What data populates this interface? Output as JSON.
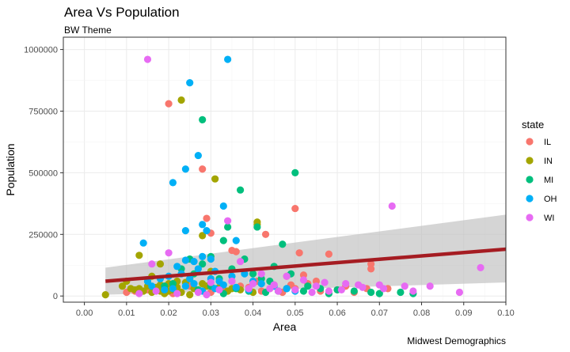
{
  "chart_data": {
    "type": "scatter",
    "title": "Area Vs Population",
    "subtitle": "BW Theme",
    "caption": "Midwest Demographics",
    "xlabel": "Area",
    "ylabel": "Population",
    "xlim": [
      -0.005,
      0.1
    ],
    "ylim": [
      -25000,
      1050000
    ],
    "x_ticks": [
      0.0,
      0.01,
      0.02,
      0.03,
      0.04,
      0.05,
      0.06,
      0.07,
      0.08,
      0.09,
      0.1
    ],
    "x_tick_labels": [
      "0.00",
      "0.01",
      "0.02",
      "0.03",
      "0.04",
      "0.05",
      "0.06",
      "0.07",
      "0.08",
      "0.09",
      "0.10"
    ],
    "y_ticks": [
      0,
      250000,
      500000,
      750000,
      1000000
    ],
    "y_tick_labels": [
      "0",
      "250000",
      "500000",
      "750000",
      "1000000"
    ],
    "grid": true,
    "legend": {
      "title": "state",
      "position": "right"
    },
    "series": [
      {
        "name": "IL",
        "color": "#F8766D",
        "points": [
          [
            0.02,
            780000
          ],
          [
            0.028,
            515000
          ],
          [
            0.05,
            355000
          ],
          [
            0.029,
            315000
          ],
          [
            0.043,
            250000
          ],
          [
            0.03,
            255000
          ],
          [
            0.036,
            180000
          ],
          [
            0.035,
            185000
          ],
          [
            0.051,
            175000
          ],
          [
            0.058,
            170000
          ],
          [
            0.068,
            130000
          ],
          [
            0.068,
            110000
          ],
          [
            0.052,
            85000
          ],
          [
            0.048,
            80000
          ],
          [
            0.062,
            40000
          ],
          [
            0.067,
            30000
          ],
          [
            0.072,
            30000
          ],
          [
            0.055,
            60000
          ],
          [
            0.045,
            45000
          ],
          [
            0.035,
            60000
          ],
          [
            0.025,
            40000
          ],
          [
            0.02,
            30000
          ],
          [
            0.015,
            25000
          ],
          [
            0.01,
            15000
          ],
          [
            0.012,
            20000
          ],
          [
            0.05,
            30000
          ],
          [
            0.042,
            20000
          ],
          [
            0.033,
            25000
          ],
          [
            0.03,
            15000
          ],
          [
            0.021,
            10000
          ],
          [
            0.037,
            40000
          ],
          [
            0.039,
            35000
          ],
          [
            0.056,
            20000
          ],
          [
            0.06,
            25000
          ],
          [
            0.064,
            15000
          ],
          [
            0.041,
            60000
          ],
          [
            0.044,
            30000
          ],
          [
            0.047,
            15000
          ],
          [
            0.053,
            50000
          ],
          [
            0.049,
            45000
          ]
        ]
      },
      {
        "name": "IN",
        "color": "#A3A500",
        "points": [
          [
            0.023,
            795000
          ],
          [
            0.031,
            475000
          ],
          [
            0.028,
            245000
          ],
          [
            0.041,
            300000
          ],
          [
            0.041,
            290000
          ],
          [
            0.013,
            165000
          ],
          [
            0.018,
            130000
          ],
          [
            0.03,
            100000
          ],
          [
            0.025,
            70000
          ],
          [
            0.02,
            50000
          ],
          [
            0.015,
            60000
          ],
          [
            0.01,
            60000
          ],
          [
            0.009,
            40000
          ],
          [
            0.011,
            30000
          ],
          [
            0.014,
            20000
          ],
          [
            0.016,
            80000
          ],
          [
            0.019,
            40000
          ],
          [
            0.021,
            25000
          ],
          [
            0.022,
            35000
          ],
          [
            0.024,
            55000
          ],
          [
            0.012,
            25000
          ],
          [
            0.013,
            30000
          ],
          [
            0.017,
            35000
          ],
          [
            0.018,
            45000
          ],
          [
            0.02,
            20000
          ],
          [
            0.026,
            30000
          ],
          [
            0.027,
            20000
          ],
          [
            0.029,
            40000
          ],
          [
            0.032,
            35000
          ],
          [
            0.034,
            20000
          ],
          [
            0.005,
            5000
          ],
          [
            0.016,
            15000
          ],
          [
            0.019,
            10000
          ],
          [
            0.023,
            15000
          ],
          [
            0.025,
            5000
          ],
          [
            0.035,
            30000
          ],
          [
            0.037,
            25000
          ],
          [
            0.04,
            15000
          ],
          [
            0.022,
            60000
          ],
          [
            0.028,
            50000
          ],
          [
            0.018,
            20000
          ],
          [
            0.015,
            40000
          ]
        ]
      },
      {
        "name": "MI",
        "color": "#00BF7D",
        "points": [
          [
            0.028,
            715000
          ],
          [
            0.05,
            500000
          ],
          [
            0.037,
            430000
          ],
          [
            0.041,
            280000
          ],
          [
            0.033,
            225000
          ],
          [
            0.047,
            210000
          ],
          [
            0.034,
            280000
          ],
          [
            0.038,
            150000
          ],
          [
            0.045,
            120000
          ],
          [
            0.049,
            90000
          ],
          [
            0.03,
            160000
          ],
          [
            0.028,
            130000
          ],
          [
            0.035,
            110000
          ],
          [
            0.04,
            90000
          ],
          [
            0.025,
            150000
          ],
          [
            0.023,
            110000
          ],
          [
            0.026,
            90000
          ],
          [
            0.032,
            70000
          ],
          [
            0.042,
            70000
          ],
          [
            0.044,
            60000
          ],
          [
            0.053,
            40000
          ],
          [
            0.056,
            30000
          ],
          [
            0.06,
            25000
          ],
          [
            0.064,
            20000
          ],
          [
            0.068,
            15000
          ],
          [
            0.07,
            10000
          ],
          [
            0.075,
            15000
          ],
          [
            0.078,
            10000
          ],
          [
            0.048,
            30000
          ],
          [
            0.046,
            20000
          ],
          [
            0.052,
            20000
          ],
          [
            0.058,
            10000
          ],
          [
            0.03,
            40000
          ],
          [
            0.036,
            30000
          ],
          [
            0.039,
            20000
          ],
          [
            0.043,
            15000
          ],
          [
            0.021,
            50000
          ],
          [
            0.019,
            40000
          ],
          [
            0.027,
            25000
          ],
          [
            0.033,
            10000
          ]
        ]
      },
      {
        "name": "OH",
        "color": "#00B0F6",
        "points": [
          [
            0.034,
            960000
          ],
          [
            0.025,
            865000
          ],
          [
            0.027,
            570000
          ],
          [
            0.024,
            515000
          ],
          [
            0.021,
            460000
          ],
          [
            0.033,
            365000
          ],
          [
            0.028,
            290000
          ],
          [
            0.024,
            265000
          ],
          [
            0.036,
            225000
          ],
          [
            0.014,
            215000
          ],
          [
            0.029,
            265000
          ],
          [
            0.028,
            160000
          ],
          [
            0.03,
            150000
          ],
          [
            0.024,
            145000
          ],
          [
            0.026,
            140000
          ],
          [
            0.022,
            120000
          ],
          [
            0.027,
            110000
          ],
          [
            0.031,
            100000
          ],
          [
            0.023,
            90000
          ],
          [
            0.02,
            80000
          ],
          [
            0.025,
            70000
          ],
          [
            0.03,
            70000
          ],
          [
            0.032,
            60000
          ],
          [
            0.035,
            80000
          ],
          [
            0.038,
            90000
          ],
          [
            0.04,
            60000
          ],
          [
            0.042,
            50000
          ],
          [
            0.045,
            40000
          ],
          [
            0.018,
            70000
          ],
          [
            0.016,
            40000
          ],
          [
            0.021,
            30000
          ],
          [
            0.024,
            40000
          ],
          [
            0.026,
            50000
          ],
          [
            0.028,
            20000
          ],
          [
            0.031,
            30000
          ],
          [
            0.033,
            45000
          ],
          [
            0.036,
            35000
          ],
          [
            0.039,
            25000
          ],
          [
            0.048,
            30000
          ],
          [
            0.05,
            20000
          ],
          [
            0.015,
            60000
          ],
          [
            0.019,
            25000
          ]
        ]
      },
      {
        "name": "WI",
        "color": "#E76BF3",
        "points": [
          [
            0.015,
            960000
          ],
          [
            0.073,
            365000
          ],
          [
            0.02,
            175000
          ],
          [
            0.016,
            130000
          ],
          [
            0.034,
            305000
          ],
          [
            0.094,
            115000
          ],
          [
            0.037,
            140000
          ],
          [
            0.042,
            90000
          ],
          [
            0.048,
            80000
          ],
          [
            0.052,
            65000
          ],
          [
            0.057,
            55000
          ],
          [
            0.062,
            50000
          ],
          [
            0.065,
            45000
          ],
          [
            0.07,
            45000
          ],
          [
            0.076,
            40000
          ],
          [
            0.082,
            40000
          ],
          [
            0.089,
            15000
          ],
          [
            0.078,
            20000
          ],
          [
            0.071,
            30000
          ],
          [
            0.066,
            35000
          ],
          [
            0.055,
            40000
          ],
          [
            0.045,
            45000
          ],
          [
            0.04,
            50000
          ],
          [
            0.035,
            60000
          ],
          [
            0.03,
            55000
          ],
          [
            0.044,
            30000
          ],
          [
            0.05,
            25000
          ],
          [
            0.054,
            15000
          ],
          [
            0.058,
            20000
          ],
          [
            0.061,
            25000
          ],
          [
            0.046,
            20000
          ],
          [
            0.039,
            30000
          ],
          [
            0.032,
            25000
          ],
          [
            0.027,
            15000
          ],
          [
            0.013,
            10000
          ],
          [
            0.017,
            20000
          ],
          [
            0.022,
            10000
          ],
          [
            0.029,
            5000
          ]
        ]
      }
    ],
    "trend": {
      "color": "#A51C22",
      "band_color": "#BEBEBE",
      "x": [
        0.005,
        0.1
      ],
      "y": [
        60000,
        190000
      ],
      "band_low": [
        5000,
        55000
      ],
      "band_high": [
        115000,
        330000
      ]
    }
  }
}
